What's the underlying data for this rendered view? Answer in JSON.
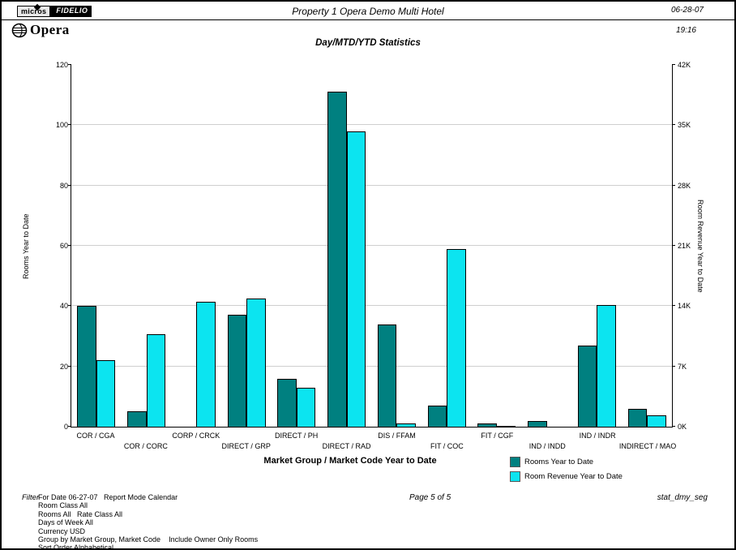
{
  "header": {
    "badge_left": "micros",
    "badge_right": "FIDELIO",
    "logo_text": "Opera",
    "property_title": "Property 1 Opera Demo Multi Hotel",
    "date": "06-28-07",
    "time": "19:16"
  },
  "chart": {
    "title": "Day/MTD/YTD Statistics",
    "x_axis_title": "Market Group / Market Code Year to Date",
    "left_axis_label": "Rooms Year to Date",
    "right_axis_label": "Room Revenue Year to Date",
    "colors": {
      "rooms": "#008080",
      "revenue": "#0ce4f0"
    }
  },
  "chart_data": {
    "type": "bar",
    "title": "Day/MTD/YTD Statistics",
    "xlabel": "Market Group / Market Code Year to Date",
    "categories": [
      "COR / CGA",
      "COR / CORC",
      "CORP / CRCK",
      "DIRECT / GRP",
      "DIRECT / PH",
      "DIRECT / RAD",
      "DIS / FFAM",
      "FIT / COC",
      "FIT / CGF",
      "IND / INDD",
      "IND / INDR",
      "INDIRECT / MAO"
    ],
    "series": [
      {
        "name": "Rooms Year to Date",
        "axis": "left",
        "color": "#008080",
        "values": [
          40,
          5,
          0,
          37,
          16,
          111,
          34,
          7,
          1,
          2,
          27,
          6
        ]
      },
      {
        "name": "Room Revenue Year to Date",
        "axis": "right",
        "color": "#0ce4f0",
        "values": [
          7700,
          10700,
          14500,
          14900,
          4550,
          34300,
          350,
          20600,
          100,
          0,
          14150,
          1300
        ]
      }
    ],
    "left_axis": {
      "label": "Rooms Year to Date",
      "ticks": [
        0,
        20,
        40,
        60,
        80,
        100,
        120
      ],
      "range": [
        0,
        120
      ]
    },
    "right_axis": {
      "label": "Room Revenue Year to Date",
      "tick_labels": [
        "0K",
        "7K",
        "14K",
        "21K",
        "28K",
        "35K",
        "42K"
      ],
      "ticks": [
        0,
        7000,
        14000,
        21000,
        28000,
        35000,
        42000
      ],
      "range": [
        0,
        42000
      ]
    },
    "grid": true,
    "legend_position": "bottom-right",
    "legend": [
      {
        "label": "Rooms Year to Date",
        "color": "#008080"
      },
      {
        "label": "Room Revenue Year to Date",
        "color": "#0ce4f0"
      }
    ]
  },
  "footer": {
    "filter_label": "Filter",
    "filter_lines": [
      "For Date 06-27-07   Report Mode Calendar",
      "Room Class All",
      "Rooms All   Rate Class All",
      "Days of Week All",
      "Currency USD",
      "Group by Market Group, Market Code    Include Owner Only Rooms",
      "Sort Order Alphabetical"
    ],
    "page_text": "Page 5 of 5",
    "report_code": "stat_dmy_seg"
  }
}
